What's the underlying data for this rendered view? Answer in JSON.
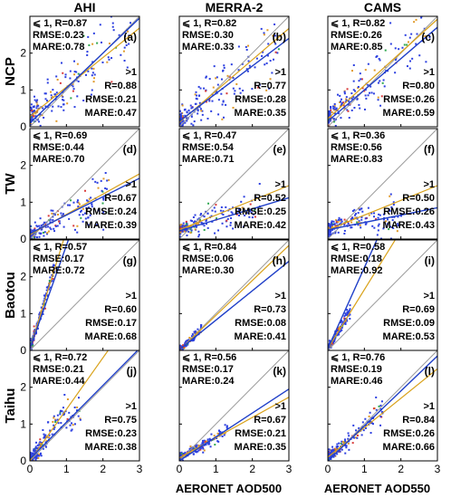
{
  "columns": [
    "AHI",
    "MERRA-2",
    "CAMS"
  ],
  "rows": [
    "NCP",
    "TW",
    "Baotou",
    "Taihu"
  ],
  "x_axis_labels": [
    "",
    "AERONET AOD500",
    "AERONET AOD550"
  ],
  "colors": {
    "blue_fit": "#1f3fc8",
    "orange_fit": "#d9a21b",
    "one_to_one": "#9a9a9a",
    "points_blue": "#2c3fe0",
    "points_orange": "#e09a2a",
    "points_red": "#d83a3a",
    "points_green": "#2fa84f"
  },
  "chart_data": {
    "type": "scatter",
    "grid_layout": "4 rows x 3 columns",
    "xlim": [
      0,
      3
    ],
    "ylim": [
      0,
      3
    ],
    "xticks": [
      "0",
      "1",
      "2",
      "3"
    ],
    "yticks": [
      "0",
      "1",
      "2"
    ],
    "grid": false,
    "legend": "none",
    "one_to_one_line": true,
    "panels": [
      {
        "row": "NCP",
        "column": "AHI",
        "label": "(a)",
        "low": {
          "header": "⩽ 1, R=0.87",
          "rmse": "RMSE:0.23",
          "mare": "MARE:0.78",
          "slope": 0.8,
          "intercept": 0.28
        },
        "high": {
          "gt": ">1",
          "r": "R=0.88",
          "rmse": "RMSE:0.21",
          "mare": "MARE:0.47",
          "slope": 0.95,
          "intercept": 0.1
        },
        "spread": 0.35,
        "max_x": 2.8
      },
      {
        "row": "NCP",
        "column": "MERRA-2",
        "label": "(b)",
        "low": {
          "header": "⩽ 1, R=0.82",
          "rmse": "RMSE:0.30",
          "mare": "MARE:0.33",
          "slope": 0.85,
          "intercept": 0.12
        },
        "high": {
          "gt": ">1",
          "r": "R=0.77",
          "rmse": "RMSE:0.28",
          "mare": "MARE:0.35",
          "slope": 0.75,
          "intercept": 0.15
        },
        "spread": 0.35,
        "max_x": 2.8
      },
      {
        "row": "NCP",
        "column": "CAMS",
        "label": "(c)",
        "low": {
          "header": "⩽ 1, R=0.82",
          "rmse": "RMSE:0.26",
          "mare": "MARE:0.85",
          "slope": 0.9,
          "intercept": 0.22
        },
        "high": {
          "gt": ">1",
          "r": "R=0.80",
          "rmse": "RMSE:0.26",
          "mare": "MARE:0.59",
          "slope": 0.85,
          "intercept": 0.15
        },
        "spread": 0.35,
        "max_x": 2.8
      },
      {
        "row": "TW",
        "column": "AHI",
        "label": "(d)",
        "low": {
          "header": "⩽ 1, R=0.69",
          "rmse": "RMSE:0.44",
          "mare": "MARE:0.70",
          "slope": 0.55,
          "intercept": 0.12
        },
        "high": {
          "gt": ">1",
          "r": "R=0.67",
          "rmse": "RMSE:0.24",
          "mare": "MARE:0.39",
          "slope": 0.5,
          "intercept": 0.15
        },
        "spread": 0.25,
        "max_x": 2.2
      },
      {
        "row": "TW",
        "column": "MERRA-2",
        "label": "(e)",
        "low": {
          "header": "⩽ 1, R=0.47",
          "rmse": "RMSE:0.54",
          "mare": "MARE:0.71",
          "slope": 0.4,
          "intercept": 0.25
        },
        "high": {
          "gt": ">1",
          "r": "R=0.52",
          "rmse": "RMSE:0.25",
          "mare": "MARE:0.42",
          "slope": 0.3,
          "intercept": 0.22
        },
        "spread": 0.2,
        "max_x": 2.2
      },
      {
        "row": "TW",
        "column": "CAMS",
        "label": "(f)",
        "low": {
          "header": "⩽ 1, R=0.36",
          "rmse": "RMSE:0.56",
          "mare": "MARE:0.83",
          "slope": 0.4,
          "intercept": 0.25
        },
        "high": {
          "gt": ">1",
          "r": "R=0.50",
          "rmse": "RMSE:0.26",
          "mare": "MARE:0.43",
          "slope": 0.2,
          "intercept": 0.25
        },
        "spread": 0.2,
        "max_x": 2.0
      },
      {
        "row": "Baotou",
        "column": "AHI",
        "label": "(g)",
        "low": {
          "header": "⩽ 1, R=0.57",
          "rmse": "RMSE:0.17",
          "mare": "MARE:0.72",
          "slope": 3.2,
          "intercept": 0.05
        },
        "high": {
          "gt": ">1",
          "r": "R=0.60",
          "rmse": "RMSE:0.17",
          "mare": "MARE:0.68",
          "slope": 2.8,
          "intercept": 0.05
        },
        "spread": 0.15,
        "max_x": 0.7
      },
      {
        "row": "Baotou",
        "column": "MERRA-2",
        "label": "(h)",
        "low": {
          "header": "⩽ 1, R=0.84",
          "rmse": "RMSE:0.06",
          "mare": "MARE:0.30",
          "slope": 0.95,
          "intercept": 0.0
        },
        "high": {
          "gt": ">1",
          "r": "R=0.73",
          "rmse": "RMSE:0.08",
          "mare": "MARE:0.41",
          "slope": 0.8,
          "intercept": 0.02
        },
        "spread": 0.08,
        "max_x": 0.6
      },
      {
        "row": "Baotou",
        "column": "CAMS",
        "label": "(i)",
        "low": {
          "header": "⩽ 1, R=0.58",
          "rmse": "RMSE:0.18",
          "mare": "MARE:0.92",
          "slope": 1.6,
          "intercept": 0.05
        },
        "high": {
          "gt": ">1",
          "r": "R=0.69",
          "rmse": "RMSE:0.09",
          "mare": "MARE:0.53",
          "slope": 2.2,
          "intercept": 0.05
        },
        "spread": 0.12,
        "max_x": 0.6
      },
      {
        "row": "Taihu",
        "column": "AHI",
        "label": "(j)",
        "low": {
          "header": "⩽ 1, R=0.72",
          "rmse": "RMSE:0.21",
          "mare": "MARE:0.44",
          "slope": 1.4,
          "intercept": 0.0
        },
        "high": {
          "gt": ">1",
          "r": "R=0.75",
          "rmse": "RMSE:0.23",
          "mare": "MARE:0.38",
          "slope": 1.0,
          "intercept": 0.05
        },
        "spread": 0.2,
        "max_x": 1.4
      },
      {
        "row": "Taihu",
        "column": "MERRA-2",
        "label": "(k)",
        "low": {
          "header": "⩽ 1, R=0.56",
          "rmse": "RMSE:0.17",
          "mare": "MARE:0.24",
          "slope": 0.55,
          "intercept": 0.08
        },
        "high": {
          "gt": ">1",
          "r": "R=0.67",
          "rmse": "RMSE:0.21",
          "mare": "MARE:0.35",
          "slope": 0.65,
          "intercept": 0.0
        },
        "spread": 0.1,
        "max_x": 1.3
      },
      {
        "row": "Taihu",
        "column": "CAMS",
        "label": "(l)",
        "low": {
          "header": "⩽ 1, R=0.76",
          "rmse": "RMSE:0.19",
          "mare": "MARE:0.46",
          "slope": 0.8,
          "intercept": 0.1
        },
        "high": {
          "gt": ">1",
          "r": "R=0.84",
          "rmse": "RMSE:0.26",
          "mare": "MARE:0.66",
          "slope": 0.95,
          "intercept": 0.0
        },
        "spread": 0.15,
        "max_x": 1.5
      }
    ]
  }
}
